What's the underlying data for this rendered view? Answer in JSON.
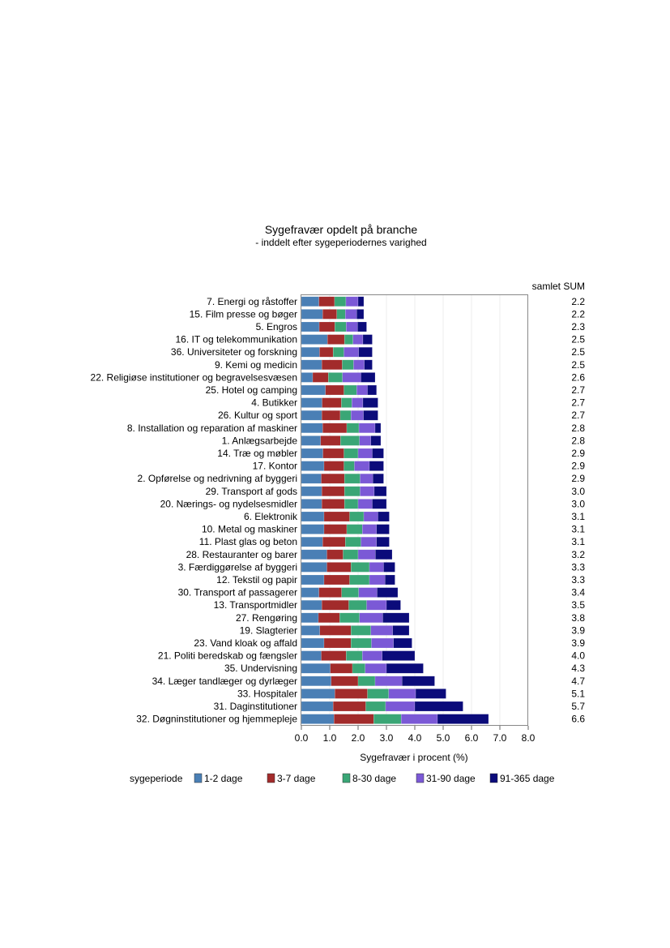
{
  "chart_data": {
    "type": "bar",
    "orientation": "horizontal",
    "stacked": true,
    "title": "Sygefravær opdelt på branche",
    "subtitle": "- inddelt efter sygeperiodernes varighed",
    "xlabel": "Sygefravær i procent (%)",
    "ylabel": "",
    "xlim": [
      0,
      8
    ],
    "xticks": [
      "0.0",
      "1.0",
      "2.0",
      "3.0",
      "4.0",
      "5.0",
      "6.0",
      "7.0",
      "8.0"
    ],
    "grid": "vertical",
    "sum_header": "samlet SUM",
    "legend_title": "sygeperiode",
    "legend_position": "bottom",
    "categories": [
      "7. Energi og råstoffer",
      "15. Film presse og bøger",
      "5. Engros",
      "16. IT og telekommunikation",
      "36. Universiteter og forskning",
      "9. Kemi og medicin",
      "22. Religiøse institutioner og begravelsesvæsen",
      "25. Hotel og camping",
      "4. Butikker",
      "26. Kultur og sport",
      "8. Installation og reparation af maskiner",
      "1. Anlægsarbejde",
      "14. Træ og møbler",
      "17. Kontor",
      "2. Opførelse og nedrivning af byggeri",
      "29. Transport af gods",
      "20. Nærings- og nydelsesmidler",
      "6. Elektronik",
      "10. Metal og maskiner",
      "11. Plast glas og beton",
      "28. Restauranter og barer",
      "3. Færdiggørelse af byggeri",
      "12. Tekstil og papir",
      "30. Transport af passagerer",
      "13. Transportmidler",
      "27. Rengøring",
      "19. Slagterier",
      "23. Vand kloak og affald",
      "21. Politi beredskab og fængsler",
      "35. Undervisning",
      "34. Læger tandlæger og dyrlæger",
      "33. Hospitaler",
      "31. Daginstitutioner",
      "32. Døgninstitutioner og hjemmepleje"
    ],
    "totals": [
      "2.2",
      "2.2",
      "2.3",
      "2.5",
      "2.5",
      "2.5",
      "2.6",
      "2.7",
      "2.7",
      "2.7",
      "2.8",
      "2.8",
      "2.9",
      "2.9",
      "2.9",
      "3.0",
      "3.0",
      "3.1",
      "3.1",
      "3.1",
      "3.2",
      "3.3",
      "3.3",
      "3.4",
      "3.5",
      "3.8",
      "3.9",
      "3.9",
      "4.0",
      "4.3",
      "4.7",
      "5.1",
      "5.7",
      "6.6"
    ],
    "series": [
      {
        "name": "1-2 dage",
        "color": "#4a7fb5",
        "values": [
          0.62,
          0.75,
          0.63,
          0.92,
          0.64,
          0.72,
          0.4,
          0.85,
          0.73,
          0.72,
          0.75,
          0.68,
          0.76,
          0.8,
          0.7,
          0.72,
          0.72,
          0.8,
          0.8,
          0.75,
          0.9,
          0.9,
          0.8,
          0.62,
          0.72,
          0.6,
          0.65,
          0.8,
          0.7,
          1.02,
          1.05,
          1.18,
          1.12,
          1.15
        ]
      },
      {
        "name": "3-7 dage",
        "color": "#a22b2b",
        "values": [
          0.55,
          0.5,
          0.55,
          0.6,
          0.48,
          0.72,
          0.55,
          0.65,
          0.68,
          0.65,
          0.85,
          0.7,
          0.74,
          0.7,
          0.82,
          0.8,
          0.8,
          0.9,
          0.8,
          0.8,
          0.57,
          0.85,
          0.9,
          0.8,
          0.95,
          0.75,
          1.1,
          0.95,
          0.88,
          0.78,
          0.95,
          1.15,
          1.15,
          1.4
        ]
      },
      {
        "name": "8-30 dage",
        "color": "#3aa676",
        "values": [
          0.4,
          0.3,
          0.4,
          0.3,
          0.38,
          0.4,
          0.5,
          0.45,
          0.37,
          0.38,
          0.43,
          0.67,
          0.5,
          0.37,
          0.55,
          0.55,
          0.48,
          0.5,
          0.55,
          0.55,
          0.53,
          0.65,
          0.7,
          0.6,
          0.63,
          0.7,
          0.7,
          0.72,
          0.57,
          0.45,
          0.6,
          0.75,
          0.7,
          0.97
        ]
      },
      {
        "name": "31-90 dage",
        "color": "#7b59d6",
        "values": [
          0.43,
          0.4,
          0.4,
          0.35,
          0.52,
          0.38,
          0.65,
          0.38,
          0.39,
          0.44,
          0.57,
          0.4,
          0.5,
          0.53,
          0.45,
          0.5,
          0.5,
          0.5,
          0.5,
          0.55,
          0.61,
          0.5,
          0.55,
          0.65,
          0.7,
          0.82,
          0.77,
          0.78,
          0.7,
          0.75,
          0.95,
          0.95,
          1.03,
          1.28
        ]
      },
      {
        "name": "91-365 dage",
        "color": "#0b0b7a",
        "values": [
          0.2,
          0.25,
          0.32,
          0.33,
          0.48,
          0.28,
          0.5,
          0.32,
          0.53,
          0.51,
          0.2,
          0.35,
          0.4,
          0.5,
          0.38,
          0.43,
          0.5,
          0.4,
          0.45,
          0.45,
          0.59,
          0.4,
          0.35,
          0.73,
          0.5,
          0.93,
          0.58,
          0.65,
          1.15,
          1.3,
          1.15,
          1.07,
          1.7,
          1.8
        ]
      }
    ]
  }
}
